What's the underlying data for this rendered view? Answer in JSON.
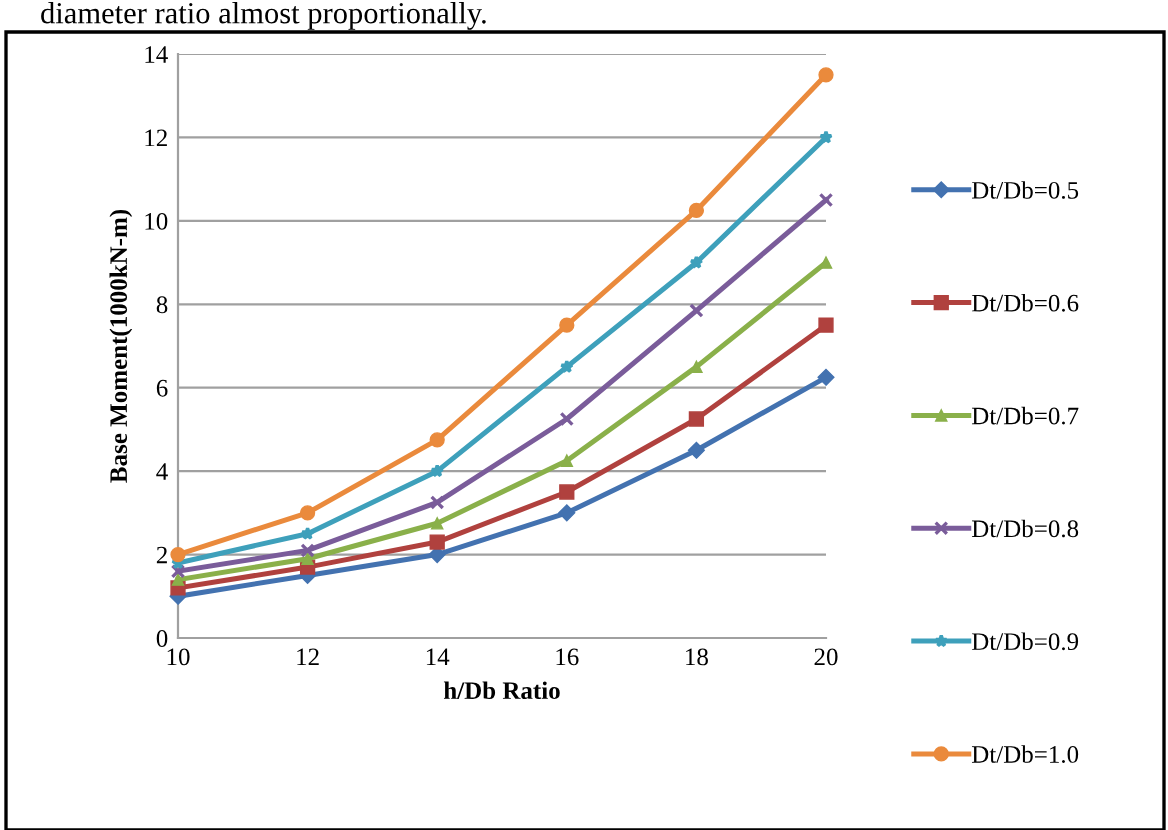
{
  "chart_data": {
    "type": "line",
    "xlabel": "h/Db Ratio",
    "ylabel": "Base Moment(1000kN-m)",
    "annotations": [
      "diameter ratio almost proportionally."
    ],
    "x": [
      10,
      12,
      14,
      16,
      18,
      20
    ],
    "xlim": [
      10,
      20
    ],
    "xticks": [
      10,
      12,
      14,
      16,
      18,
      20
    ],
    "ylim": [
      0,
      14
    ],
    "yticks": [
      0,
      2,
      4,
      6,
      8,
      10,
      12,
      14
    ],
    "grid": "y",
    "legend": "right",
    "line_style": "solid",
    "series": [
      {
        "name": "Dt/Db=0.5",
        "color": "#4372b0",
        "marker": "diamond",
        "values": [
          1,
          1.5,
          2,
          3,
          4.5,
          6.25
        ]
      },
      {
        "name": "Dt/Db=0.6",
        "color": "#b0413e",
        "marker": "square",
        "values": [
          1.2,
          1.7,
          2.3,
          3.5,
          5.25,
          7.5
        ]
      },
      {
        "name": "Dt/Db=0.7",
        "color": "#8ab04a",
        "marker": "triangle",
        "values": [
          1.4,
          1.9,
          2.75,
          4.25,
          6.5,
          9
        ]
      },
      {
        "name": "Dt/Db=0.8",
        "color": "#7a5c9a",
        "marker": "cross",
        "values": [
          1.6,
          2.1,
          3.25,
          5.25,
          7.85,
          10.5
        ]
      },
      {
        "name": "Dt/Db=0.9",
        "color": "#3ea0bb",
        "marker": "star",
        "values": [
          1.8,
          2.5,
          4,
          6.5,
          9,
          12
        ]
      },
      {
        "name": "Dt/Db=1.0",
        "color": "#ea8a3c",
        "marker": "circle",
        "values": [
          2,
          3,
          4.75,
          7.5,
          10.25,
          13.5
        ]
      }
    ]
  }
}
